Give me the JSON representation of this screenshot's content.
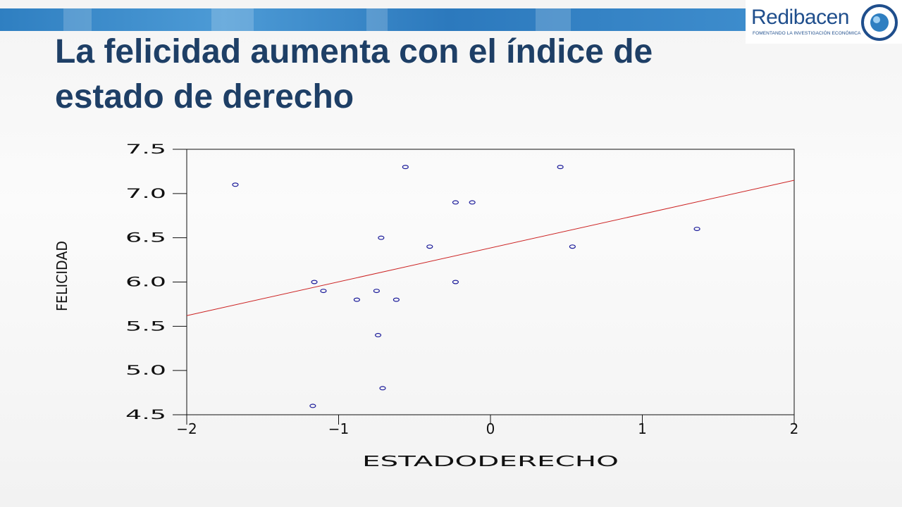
{
  "slide": {
    "title": "La felicidad aumenta con el índice de estado de derecho"
  },
  "logo": {
    "name": "Redibacen",
    "tagline": "FOMENTANDO LA INVESTIGACIÓN ECONÓMICA",
    "icon": "globe-ring-icon"
  },
  "colors": {
    "title": "#1e3f66",
    "band": "#2f7fc1",
    "points": "#1a1a99",
    "regression_line": "#cc2222"
  },
  "chart_data": {
    "type": "scatter",
    "xlabel": "ESTADODERECHO",
    "ylabel": "FELICIDAD",
    "xlim": [
      -2,
      2
    ],
    "ylim": [
      4.5,
      7.5
    ],
    "xticks": [
      "-2",
      "-1",
      "0",
      "1",
      "2"
    ],
    "yticks": [
      "4.5",
      "5.0",
      "5.5",
      "6.0",
      "6.5",
      "7.0",
      "7.5"
    ],
    "xtick_values": [
      -2,
      -1,
      0,
      1,
      2
    ],
    "ytick_values": [
      4.5,
      5.0,
      5.5,
      6.0,
      6.5,
      7.0,
      7.5
    ],
    "grid": false,
    "points": [
      {
        "x": -1.68,
        "y": 7.1
      },
      {
        "x": -0.56,
        "y": 7.3
      },
      {
        "x": 0.46,
        "y": 7.3
      },
      {
        "x": -0.23,
        "y": 6.9
      },
      {
        "x": -0.12,
        "y": 6.9
      },
      {
        "x": -0.72,
        "y": 6.5
      },
      {
        "x": -0.4,
        "y": 6.4
      },
      {
        "x": 0.54,
        "y": 6.4
      },
      {
        "x": 1.36,
        "y": 6.6
      },
      {
        "x": -1.16,
        "y": 6.0
      },
      {
        "x": -0.23,
        "y": 6.0
      },
      {
        "x": -1.1,
        "y": 5.9
      },
      {
        "x": -0.75,
        "y": 5.9
      },
      {
        "x": -0.88,
        "y": 5.8
      },
      {
        "x": -0.62,
        "y": 5.8
      },
      {
        "x": -0.74,
        "y": 5.4
      },
      {
        "x": -0.71,
        "y": 4.8
      },
      {
        "x": -1.17,
        "y": 4.6
      }
    ],
    "regression_line": {
      "x": [
        -2,
        2
      ],
      "y": [
        5.62,
        7.15
      ]
    }
  }
}
